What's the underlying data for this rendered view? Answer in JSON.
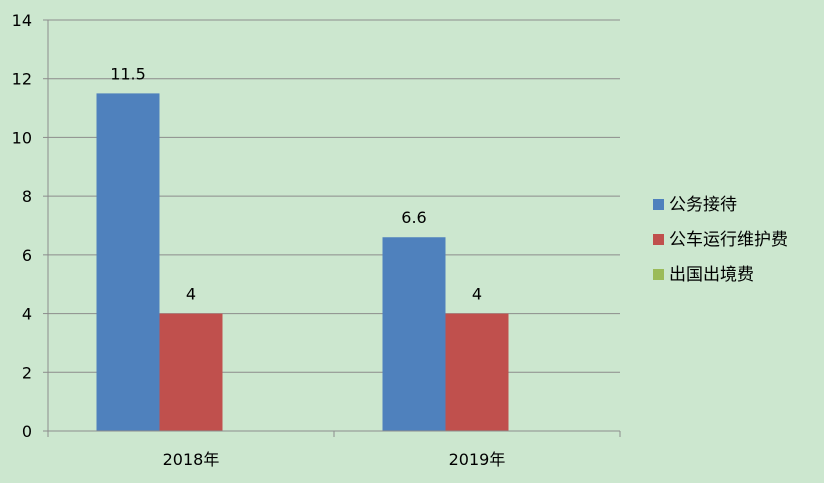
{
  "chart_data": {
    "type": "bar",
    "categories": [
      "2018年",
      "2019年"
    ],
    "series": [
      {
        "name": "公务接待",
        "values": [
          11.5,
          6.6
        ],
        "color": "#4f81bd"
      },
      {
        "name": "公车运行维护费",
        "values": [
          4,
          4
        ],
        "color": "#c0504d"
      },
      {
        "name": "出国出境费",
        "values": [
          0,
          0
        ],
        "color": "#9bbb59"
      }
    ],
    "ylim": [
      0,
      14
    ],
    "yticks": [
      0,
      2,
      4,
      6,
      8,
      10,
      12,
      14
    ],
    "data_labels": true,
    "grid": true,
    "legend_position": "right",
    "title": "",
    "xlabel": "",
    "ylabel": ""
  }
}
